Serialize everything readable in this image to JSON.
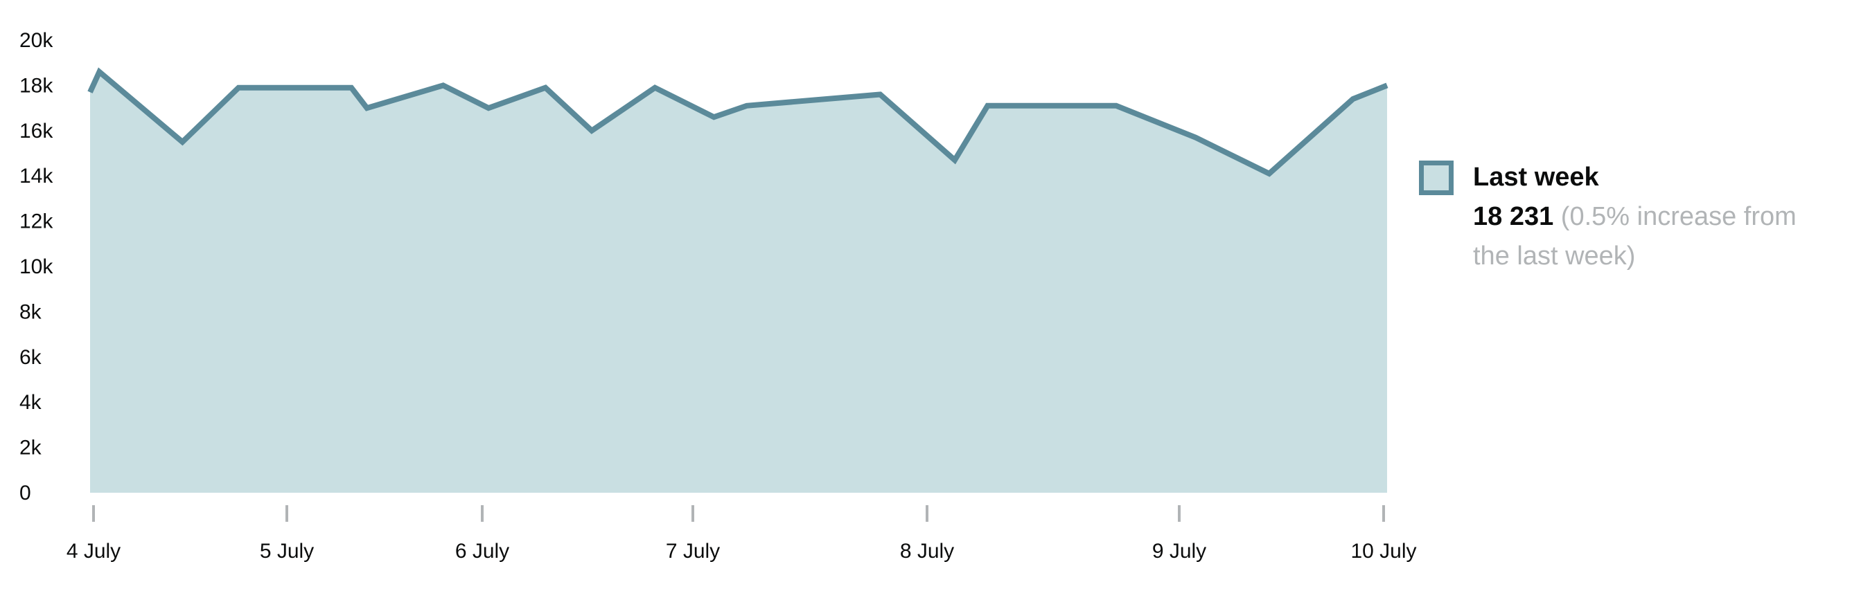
{
  "chart_data": {
    "type": "area",
    "x_tick_labels": [
      "4 July",
      "5 July",
      "6 July",
      "7 July",
      "8 July",
      "9 July",
      "10 July"
    ],
    "y_tick_labels": [
      "0",
      "2k",
      "4k",
      "6k",
      "8k",
      "10k",
      "12k",
      "14k",
      "16k",
      "18k",
      "20k"
    ],
    "ylim": [
      0,
      20000
    ],
    "xlim_days": [
      0,
      6.2
    ],
    "series": [
      {
        "name": "Last week",
        "color": "#5b8a9a",
        "fill": "#c9dfe2",
        "x": [
          0.0,
          0.03,
          0.46,
          0.75,
          1.33,
          1.41,
          1.8,
          2.03,
          2.3,
          2.52,
          2.82,
          3.09,
          3.23,
          3.8,
          4.11,
          4.24,
          4.75,
          5.08,
          5.44,
          5.85,
          6.2
        ],
        "values": [
          17700,
          18600,
          15500,
          17900,
          17900,
          17000,
          18000,
          17000,
          17900,
          16000,
          17900,
          16600,
          17100,
          17600,
          14700,
          17100,
          17100,
          15700,
          14100,
          17400,
          18000
        ]
      }
    ],
    "legend": {
      "position": "right",
      "title": "Last week",
      "value": "18 231",
      "change": "(0.5% increase from the last week)"
    },
    "grid": false
  }
}
